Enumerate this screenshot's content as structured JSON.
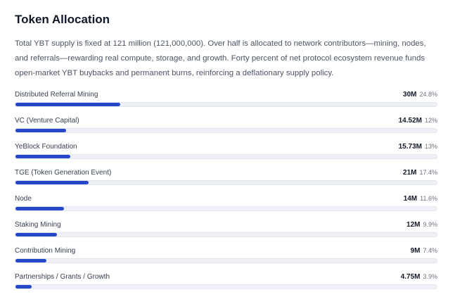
{
  "title": "Token Allocation",
  "description": "Total YBT supply is fixed at 121 million (121,000,000). Over half is allocated to network contributors—mining, nodes, and referrals—rewarding real compute, storage, and growth. Forty percent of net protocol ecosystem revenue funds open-market YBT buybacks and permanent burns, reinforcing a deflationary supply policy.",
  "colors": {
    "bar_fill": "#2747c9",
    "bar_track": "#eef0f6"
  },
  "allocations": [
    {
      "name": "Distributed Referral Mining",
      "amount": "30M",
      "percent": "24.8%",
      "share": 0.248
    },
    {
      "name": "VC (Venture Capital)",
      "amount": "14.52M",
      "percent": "12%",
      "share": 0.12
    },
    {
      "name": "YeBlock Foundation",
      "amount": "15.73M",
      "percent": "13%",
      "share": 0.13
    },
    {
      "name": "TGE (Token Generation Event)",
      "amount": "21M",
      "percent": "17.4%",
      "share": 0.174
    },
    {
      "name": "Node",
      "amount": "14M",
      "percent": "11.6%",
      "share": 0.116
    },
    {
      "name": "Staking Mining",
      "amount": "12M",
      "percent": "9.9%",
      "share": 0.099
    },
    {
      "name": "Contribution Mining",
      "amount": "9M",
      "percent": "7.4%",
      "share": 0.074
    },
    {
      "name": "Partnerships / Grants / Growth",
      "amount": "4.75M",
      "percent": "3.9%",
      "share": 0.039
    }
  ]
}
